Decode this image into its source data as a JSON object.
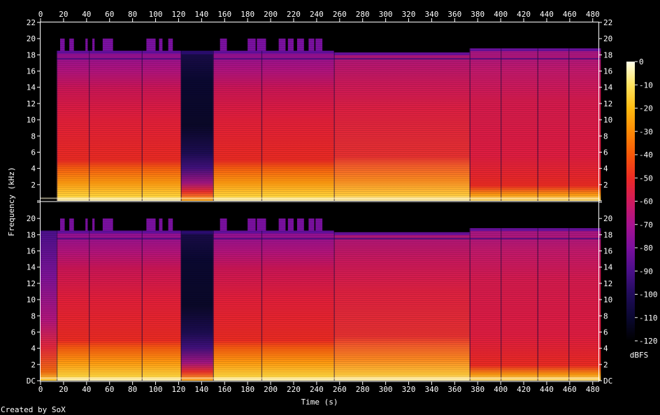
{
  "chart_data": {
    "type": "heatmap",
    "subtype": "spectrogram",
    "channels": 2,
    "xlabel": "Time (s)",
    "ylabel": "Frequency (kHz)",
    "xlim": [
      0,
      485
    ],
    "ylim": [
      0,
      22
    ],
    "x_ticks": [
      0,
      20,
      40,
      60,
      80,
      100,
      120,
      140,
      160,
      180,
      200,
      220,
      240,
      260,
      280,
      300,
      320,
      340,
      360,
      380,
      400,
      420,
      440,
      460,
      480
    ],
    "y_ticks": [
      0,
      2,
      4,
      6,
      8,
      10,
      12,
      14,
      16,
      18,
      20,
      22
    ],
    "y_tick_labels_top": [
      "",
      "2",
      "4",
      "6",
      "8",
      "10",
      "12",
      "14",
      "16",
      "18",
      "20",
      "22"
    ],
    "y_tick_labels_bottom": [
      "DC",
      "2",
      "4",
      "6",
      "8",
      "10",
      "12",
      "14",
      "16",
      "18",
      "20",
      ""
    ],
    "colorbar": {
      "label": "dBFS",
      "range": [
        -120,
        0
      ],
      "ticks": [
        0,
        -10,
        -20,
        -30,
        -40,
        -50,
        -60,
        -70,
        -80,
        -90,
        -100,
        -110,
        -120
      ],
      "tick_labels": [
        "0",
        "-10",
        "-20",
        "-30",
        "-40",
        "-50",
        "-60",
        "-70",
        "-80",
        "-90",
        "-100",
        "-110",
        "-120"
      ]
    },
    "segments": [
      {
        "t0": 0,
        "t1": 14,
        "type": "pad",
        "ch0_top": 0,
        "ch1_top": 18.5
      },
      {
        "t0": 14,
        "t1": 42,
        "type": "music",
        "top": 18.5,
        "top_spikes": 20
      },
      {
        "t0": 42,
        "t1": 88,
        "type": "music",
        "top": 18.5,
        "top_spikes": 20
      },
      {
        "t0": 88,
        "t1": 122,
        "type": "music",
        "top": 18.5,
        "top_spikes": 20
      },
      {
        "t0": 122,
        "t1": 150,
        "type": "quiet",
        "top": 18.5,
        "top_spikes": 18.5
      },
      {
        "t0": 150,
        "t1": 192,
        "type": "music",
        "top": 18.5,
        "top_spikes": 20
      },
      {
        "t0": 192,
        "t1": 255,
        "type": "music",
        "top": 18.5,
        "top_spikes": 20
      },
      {
        "t0": 255,
        "t1": 373,
        "type": "music2",
        "top": 18.3,
        "top_spikes": 18.3
      },
      {
        "t0": 373,
        "t1": 400,
        "type": "music3",
        "top": 18.8,
        "top_spikes": 18.8
      },
      {
        "t0": 400,
        "t1": 432,
        "type": "music3",
        "top": 18.8,
        "top_spikes": 18.8
      },
      {
        "t0": 432,
        "t1": 459,
        "type": "music3",
        "top": 18.8,
        "top_spikes": 18.8
      },
      {
        "t0": 459,
        "t1": 487,
        "type": "music3",
        "top": 18.8,
        "top_spikes": 18.8
      }
    ],
    "spikes_to_20khz": [
      [
        17,
        21
      ],
      [
        25,
        29
      ],
      [
        39,
        41
      ],
      [
        45,
        47
      ],
      [
        54,
        63
      ],
      [
        92,
        100
      ],
      [
        103,
        106
      ],
      [
        111,
        115
      ],
      [
        156,
        162
      ],
      [
        180,
        187
      ],
      [
        188,
        196
      ],
      [
        207,
        213
      ],
      [
        215,
        220
      ],
      [
        223,
        229
      ],
      [
        233,
        238
      ],
      [
        239,
        245
      ]
    ]
  },
  "footer": {
    "credit": "Created by SoX"
  }
}
